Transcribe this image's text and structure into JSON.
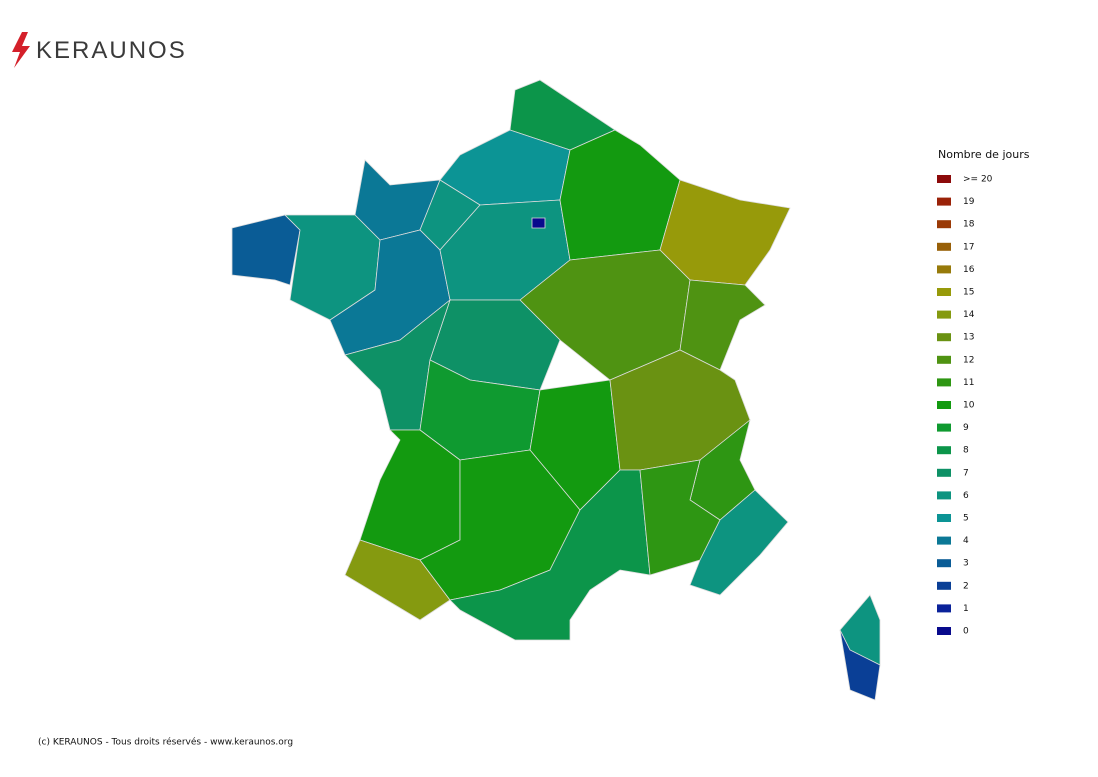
{
  "logo": {
    "text": "KERAUNOS"
  },
  "legend": {
    "title": "Nombre de jours",
    "items": [
      {
        "value": 20,
        "label": ">= 20",
        "color": "#8c0a0a"
      },
      {
        "value": 19,
        "color": "#9a2208"
      },
      {
        "value": 18,
        "color": "#9a3a06"
      },
      {
        "value": 17,
        "color": "#986008"
      },
      {
        "value": 16,
        "color": "#977a0a"
      },
      {
        "value": 15,
        "color": "#979a0a"
      },
      {
        "value": 14,
        "color": "#859a10"
      },
      {
        "value": 13,
        "color": "#6a9212"
      },
      {
        "value": 12,
        "color": "#4f9312"
      },
      {
        "value": 11,
        "color": "#2e9613"
      },
      {
        "value": 10,
        "color": "#139a10"
      },
      {
        "value": 9,
        "color": "#0f9a30"
      },
      {
        "value": 8,
        "color": "#0c954a"
      },
      {
        "value": 7,
        "color": "#0e9166"
      },
      {
        "value": 6,
        "color": "#0d9480"
      },
      {
        "value": 5,
        "color": "#0c9495"
      },
      {
        "value": 4,
        "color": "#0b7896"
      },
      {
        "value": 3,
        "color": "#0a5c96"
      },
      {
        "value": 2,
        "color": "#0a3f96"
      },
      {
        "value": 1,
        "color": "#0a229a"
      },
      {
        "value": 0,
        "color": "#080a8c"
      }
    ]
  },
  "map": {
    "regions": [
      {
        "value": 8
      },
      {
        "value": 5
      },
      {
        "value": 4
      },
      {
        "value": 6
      },
      {
        "value": 3
      },
      {
        "value": 6
      },
      {
        "value": 4
      },
      {
        "value": 6
      },
      {
        "value": 10
      },
      {
        "value": 15
      },
      {
        "value": 12
      },
      {
        "value": 12
      },
      {
        "value": 7
      },
      {
        "value": 7
      },
      {
        "value": 9
      },
      {
        "value": 10
      },
      {
        "value": 13
      },
      {
        "value": 11
      },
      {
        "value": 10
      },
      {
        "value": 14
      },
      {
        "value": 10
      },
      {
        "value": 8
      },
      {
        "value": 11
      },
      {
        "value": 6
      },
      {
        "value": 6
      },
      {
        "value": 2
      },
      {
        "value": 0
      }
    ]
  },
  "footer": "(c) KERAUNOS - Tous droits réservés - www.keraunos.org"
}
